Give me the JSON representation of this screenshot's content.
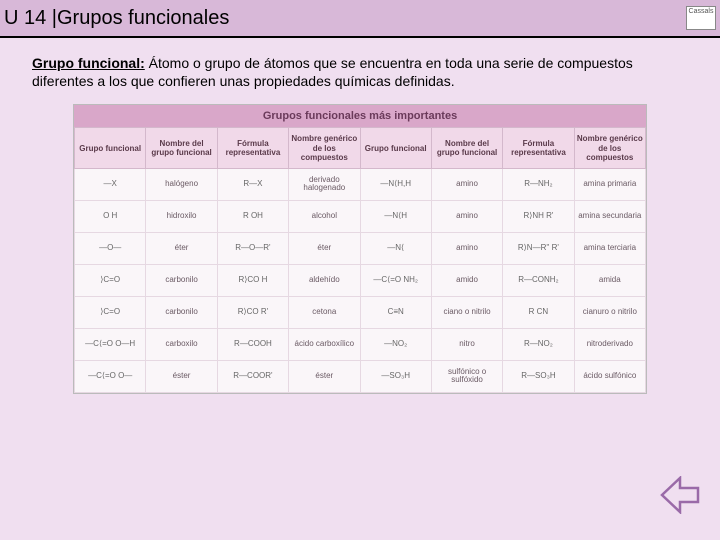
{
  "header": {
    "title": "U 14 |Grupos funcionales",
    "logo_text": "Cassals"
  },
  "definition": {
    "lead": "Grupo funcional:",
    "body": " Átomo o grupo de átomos que se encuentra en toda una serie de compuestos diferentes a los que confieren unas propiedades químicas definidas."
  },
  "table": {
    "title": "Grupos funcionales más importantes",
    "columns": [
      "Grupo funcional",
      "Nombre del grupo funcional",
      "Fórmula representativa",
      "Nombre genérico de los compuestos",
      "Grupo funcional",
      "Nombre del grupo funcional",
      "Fórmula representativa",
      "Nombre genérico de los compuestos"
    ],
    "rows": [
      [
        "—X",
        "halógeno",
        "R—X",
        "derivado halogenado",
        "—N⟨H,H",
        "amino",
        "R—NH₂",
        "amina primaria"
      ],
      [
        "O H",
        "hidroxilo",
        "R OH",
        "alcohol",
        "—N⟨H",
        "amino",
        "R⟩NH R'",
        "amina secundaria"
      ],
      [
        "—O—",
        "éter",
        "R—O—R'",
        "éter",
        "—N⟨",
        "amino",
        "R⟩N—R'' R'",
        "amina terciaria"
      ],
      [
        "⟩C=O",
        "carbonilo",
        "R⟩CO H",
        "aldehído",
        "—C⟨=O NH₂",
        "amido",
        "R—CONH₂",
        "amida"
      ],
      [
        "⟩C=O",
        "carbonilo",
        "R⟩CO R'",
        "cetona",
        "C≡N",
        "ciano o nitrilo",
        "R CN",
        "cianuro o nitrilo"
      ],
      [
        "—C⟨=O O—H",
        "carboxilo",
        "R—COOH",
        "ácido carboxílico",
        "—NO₂",
        "nitro",
        "R—NO₂",
        "nitroderivado"
      ],
      [
        "—C⟨=O O—",
        "éster",
        "R—COOR'",
        "éster",
        "—SO₃H",
        "sulfónico o sulfóxido",
        "R—SO₃H",
        "ácido sulfónico"
      ]
    ],
    "colors": {
      "title_bg": "#d9a7c9",
      "header_bg": "#f1d9e9",
      "cell_bg": "#faf6f9",
      "border": "#d4b8cc"
    }
  },
  "nav": {
    "arrow": "back"
  }
}
